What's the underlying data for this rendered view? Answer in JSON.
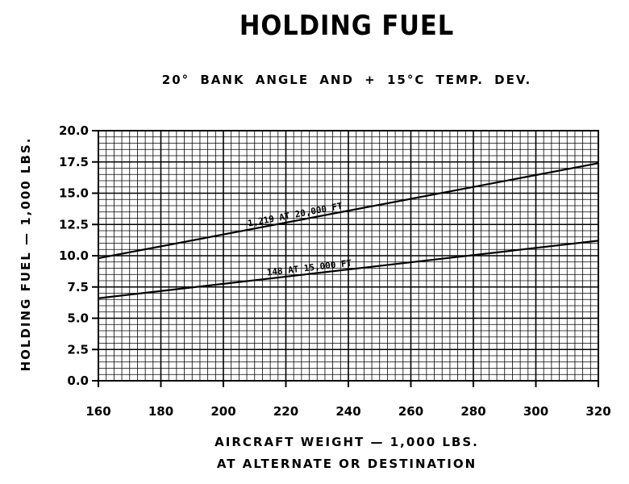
{
  "chart_data": {
    "type": "line",
    "title": "HOLDING FUEL",
    "subtitle": "20° BANK ANGLE AND + 15°C TEMP. DEV.",
    "xlabel": "AIRCRAFT WEIGHT — 1,000 LBS.",
    "xlabel_line2": "AT ALTERNATE OR DESTINATION",
    "ylabel": "HOLDING FUEL — 1,000 LBS.",
    "xlim": [
      160,
      320
    ],
    "ylim": [
      0,
      20
    ],
    "x_ticks": [
      "160",
      "180",
      "200",
      "220",
      "240",
      "260",
      "280",
      "300",
      "320"
    ],
    "y_ticks": [
      "0.0",
      "2.5",
      "5.0",
      "7.5",
      "10.0",
      "12.5",
      "15.0",
      "17.5",
      "20.0"
    ],
    "grid": true,
    "series": [
      {
        "name": "1,219 AT 20,000 FT",
        "x": [
          160,
          320
        ],
        "y": [
          9.8,
          17.4
        ]
      },
      {
        "name": "148 AT 15,000 FT",
        "x": [
          160,
          320
        ],
        "y": [
          6.6,
          11.2
        ]
      }
    ]
  }
}
